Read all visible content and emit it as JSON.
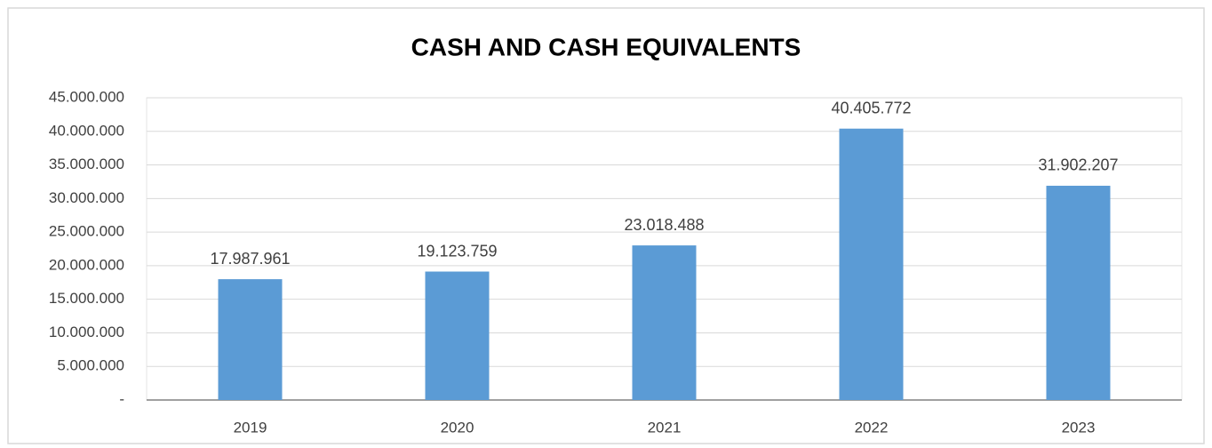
{
  "chart_data": {
    "type": "bar",
    "title": "CASH AND CASH EQUIVALENTS",
    "categories": [
      "2019",
      "2020",
      "2021",
      "2022",
      "2023"
    ],
    "values": [
      17987961,
      19123759,
      23018488,
      40405772,
      31902207
    ],
    "value_labels": [
      "17.987.961",
      "19.123.759",
      "23.018.488",
      "40.405.772",
      "31.902.207"
    ],
    "color": "#5b9bd5",
    "ylim": [
      0,
      45000000
    ],
    "yticks": [
      {
        "value": 0,
        "label": "-"
      },
      {
        "value": 5000000,
        "label": "5.000.000"
      },
      {
        "value": 10000000,
        "label": "10.000.000"
      },
      {
        "value": 15000000,
        "label": "15.000.000"
      },
      {
        "value": 20000000,
        "label": "20.000.000"
      },
      {
        "value": 25000000,
        "label": "25.000.000"
      },
      {
        "value": 30000000,
        "label": "30.000.000"
      },
      {
        "value": 35000000,
        "label": "35.000.000"
      },
      {
        "value": 40000000,
        "label": "40.000.000"
      },
      {
        "value": 45000000,
        "label": "45.000.000"
      }
    ],
    "grid": true
  }
}
